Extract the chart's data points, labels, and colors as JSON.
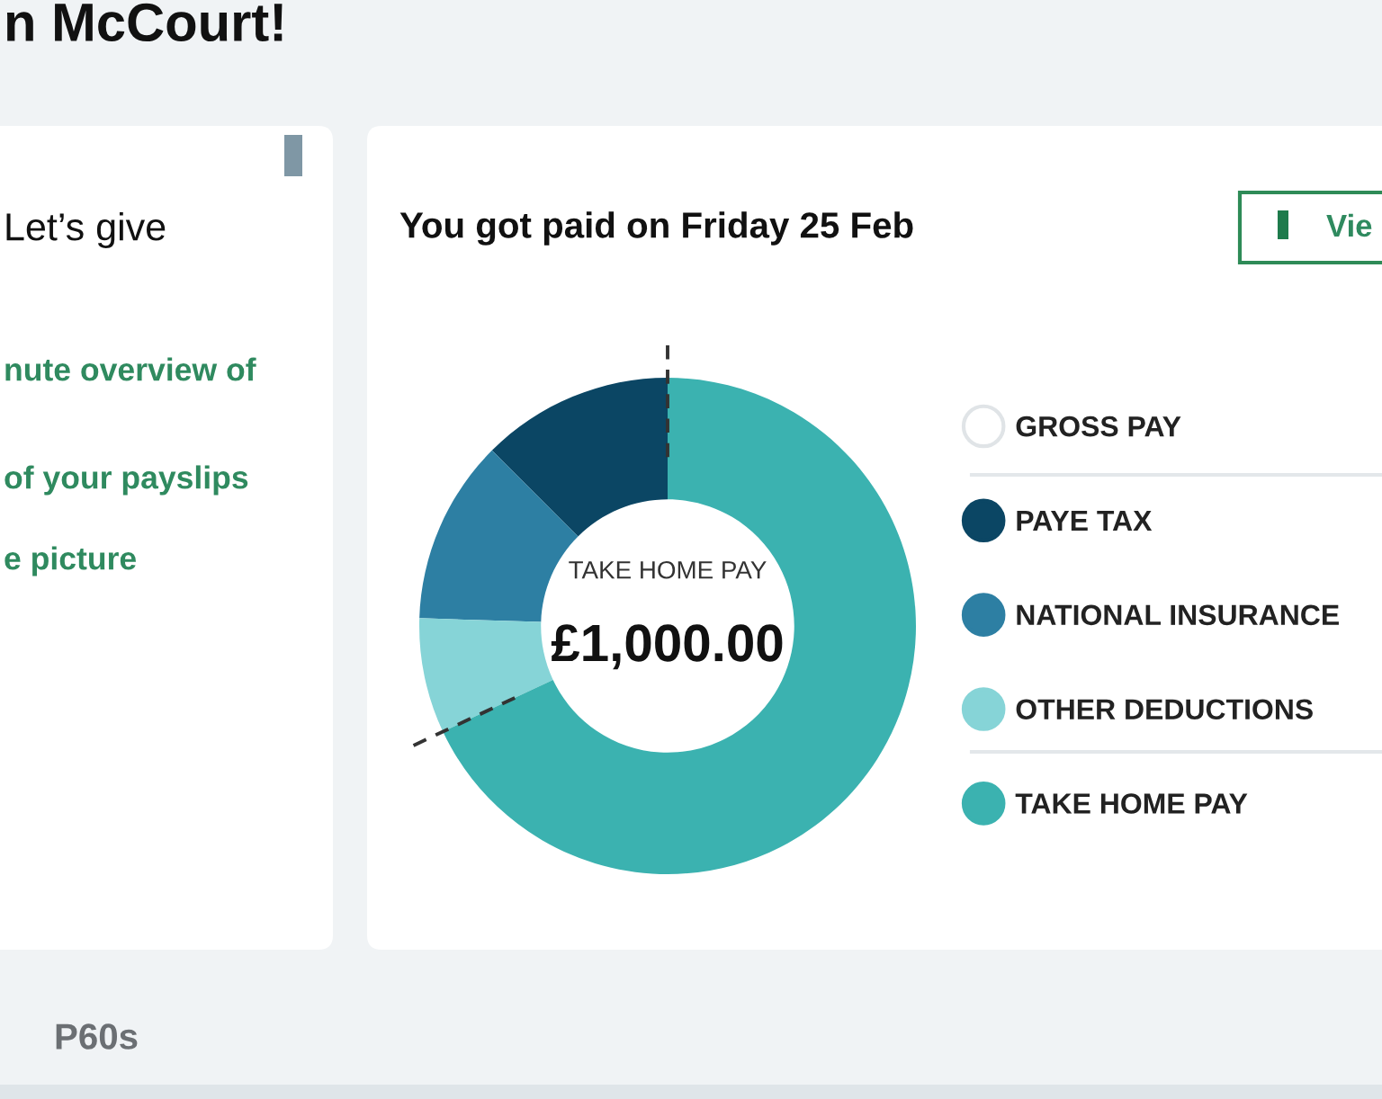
{
  "chart_data": {
    "type": "donut",
    "title": "You got paid on Friday 25 Feb",
    "categories": [
      "GROSS PAY",
      "PAYE TAX",
      "NATIONAL INSURANCE",
      "OTHER DEDUCTIONS",
      "TAKE HOME PAY"
    ],
    "values": [
      null,
      12.5,
      12,
      7.5,
      68
    ],
    "colors": [
      "#ffffff",
      "#0b4664",
      "#2d7fa3",
      "#86d4d7",
      "#3bb2b0"
    ],
    "legend": "right",
    "annotations": [
      "TAKE HOME PAY",
      "£1,000.00",
      "n McCourt!",
      "Let’s give",
      "nute overview of",
      "of your payslips",
      "e picture",
      "Vie",
      "P60s"
    ]
  }
}
